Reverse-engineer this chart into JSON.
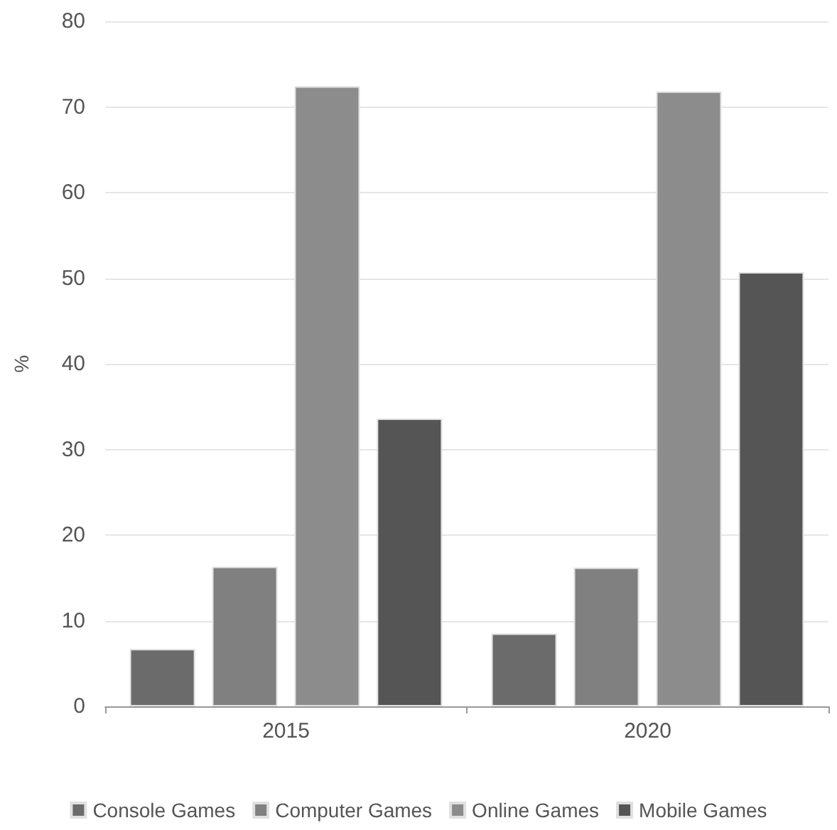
{
  "chart_data": {
    "type": "bar",
    "ylabel": "%",
    "categories": [
      "2015",
      "2020"
    ],
    "series": [
      {
        "name": "Console Games",
        "color": "#6b6b6b",
        "values": [
          6.7,
          8.5
        ]
      },
      {
        "name": "Computer Games",
        "color": "#808080",
        "values": [
          16.3,
          16.2
        ]
      },
      {
        "name": "Online Games",
        "color": "#8c8c8c",
        "values": [
          72.4,
          71.8
        ]
      },
      {
        "name": "Mobile Games",
        "color": "#555555",
        "values": [
          33.6,
          50.7
        ]
      }
    ],
    "ylim": [
      0,
      80
    ],
    "yticks": [
      0,
      10,
      20,
      30,
      40,
      50,
      60,
      70,
      80
    ],
    "grid": "y",
    "legend": "bottom"
  }
}
